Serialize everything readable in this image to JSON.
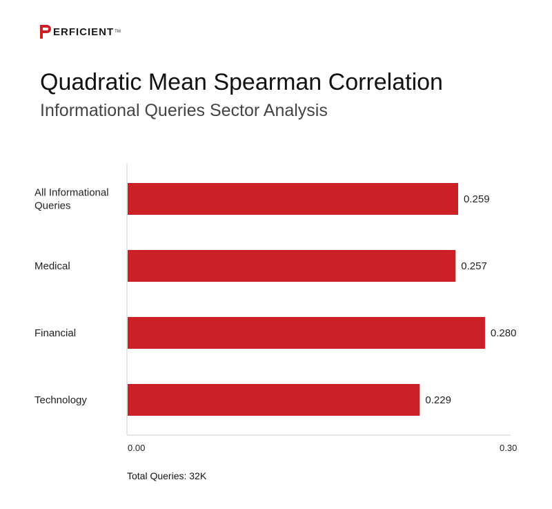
{
  "brand": {
    "logo_text": "ERFICIENT",
    "logo_mark_letter": "P",
    "trademark": "TM",
    "accent_color": "#cc1f26"
  },
  "header": {
    "title": "Quadratic Mean Spearman Correlation",
    "subtitle": "Informational Queries Sector Analysis"
  },
  "footer": {
    "note": "Total Queries: 32K"
  },
  "chart_data": {
    "type": "bar",
    "orientation": "horizontal",
    "categories": [
      [
        "All Informational",
        "Queries"
      ],
      [
        "Medical"
      ],
      [
        "Financial"
      ],
      [
        "Technology"
      ]
    ],
    "values": [
      0.259,
      0.257,
      0.28,
      0.229
    ],
    "value_labels": [
      "0.259",
      "0.257",
      "0.280",
      "0.229"
    ],
    "xlim": [
      0,
      0.3
    ],
    "x_tick_labels": [
      "0.00",
      "0.30"
    ],
    "bar_color": "#cc1f26",
    "grid": false,
    "legend": "none"
  }
}
